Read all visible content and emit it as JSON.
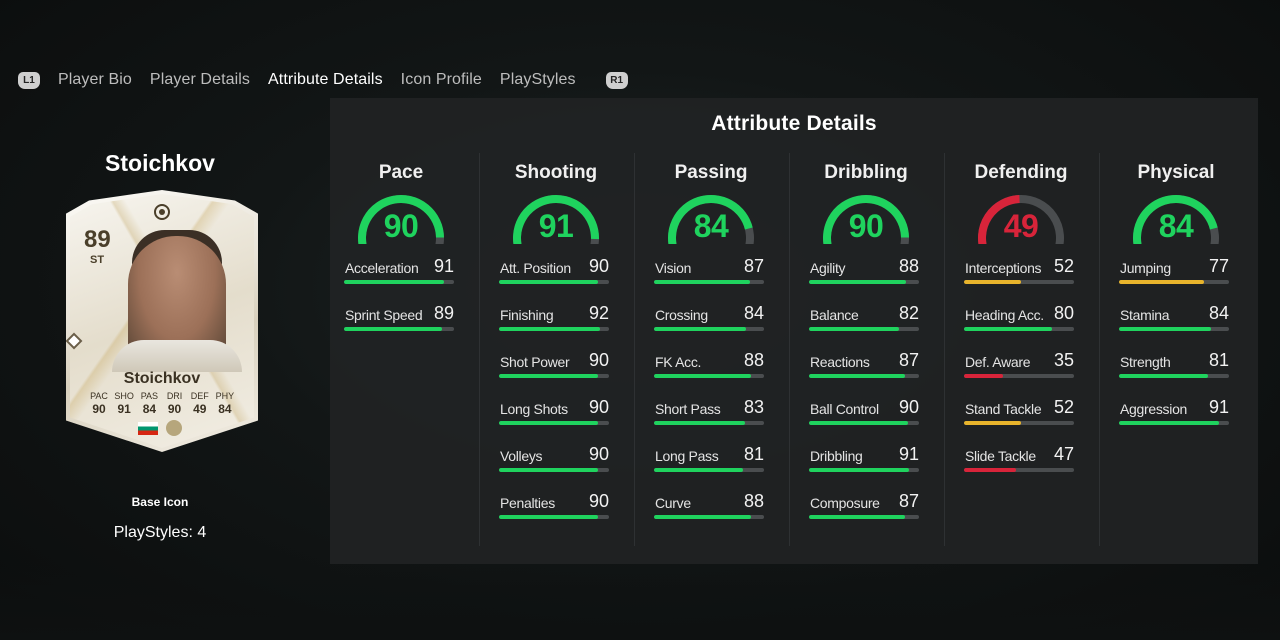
{
  "tabs": {
    "left_button": "L1",
    "right_button": "R1",
    "items": [
      {
        "label": "Player Bio"
      },
      {
        "label": "Player Details"
      },
      {
        "label": "Attribute Details",
        "active": true
      },
      {
        "label": "Icon Profile"
      },
      {
        "label": "PlayStyles"
      }
    ]
  },
  "player": {
    "name": "Stoichkov",
    "card_type": "Base Icon",
    "playstyles_label": "PlayStyles: 4"
  },
  "card": {
    "rating": "89",
    "position": "ST",
    "name": "Stoichkov",
    "stat_labels": [
      "PAC",
      "SHO",
      "PAS",
      "DRI",
      "DEF",
      "PHY"
    ],
    "stat_values": [
      "90",
      "91",
      "84",
      "90",
      "49",
      "84"
    ]
  },
  "panel": {
    "title": "Attribute Details"
  },
  "colors": {
    "high": "#1fd35e",
    "mid": "#e8b42c",
    "low": "#d8243a",
    "track": "#4a4d4f"
  },
  "categories": [
    {
      "name": "Pace",
      "value": 90,
      "attributes": [
        {
          "name": "Acceleration",
          "value": 91
        },
        {
          "name": "Sprint Speed",
          "value": 89
        }
      ]
    },
    {
      "name": "Shooting",
      "value": 91,
      "attributes": [
        {
          "name": "Att. Position",
          "value": 90
        },
        {
          "name": "Finishing",
          "value": 92
        },
        {
          "name": "Shot Power",
          "value": 90
        },
        {
          "name": "Long Shots",
          "value": 90
        },
        {
          "name": "Volleys",
          "value": 90
        },
        {
          "name": "Penalties",
          "value": 90
        }
      ]
    },
    {
      "name": "Passing",
      "value": 84,
      "attributes": [
        {
          "name": "Vision",
          "value": 87
        },
        {
          "name": "Crossing",
          "value": 84
        },
        {
          "name": "FK Acc.",
          "value": 88
        },
        {
          "name": "Short Pass",
          "value": 83
        },
        {
          "name": "Long Pass",
          "value": 81
        },
        {
          "name": "Curve",
          "value": 88
        }
      ]
    },
    {
      "name": "Dribbling",
      "value": 90,
      "attributes": [
        {
          "name": "Agility",
          "value": 88
        },
        {
          "name": "Balance",
          "value": 82
        },
        {
          "name": "Reactions",
          "value": 87
        },
        {
          "name": "Ball Control",
          "value": 90
        },
        {
          "name": "Dribbling",
          "value": 91
        },
        {
          "name": "Composure",
          "value": 87
        }
      ]
    },
    {
      "name": "Defending",
      "value": 49,
      "attributes": [
        {
          "name": "Interceptions",
          "value": 52
        },
        {
          "name": "Heading Acc.",
          "value": 80
        },
        {
          "name": "Def. Aware",
          "value": 35
        },
        {
          "name": "Stand Tackle",
          "value": 52
        },
        {
          "name": "Slide Tackle",
          "value": 47
        }
      ]
    },
    {
      "name": "Physical",
      "value": 84,
      "attributes": [
        {
          "name": "Jumping",
          "value": 77
        },
        {
          "name": "Stamina",
          "value": 84
        },
        {
          "name": "Strength",
          "value": 81
        },
        {
          "name": "Aggression",
          "value": 91
        }
      ]
    }
  ]
}
